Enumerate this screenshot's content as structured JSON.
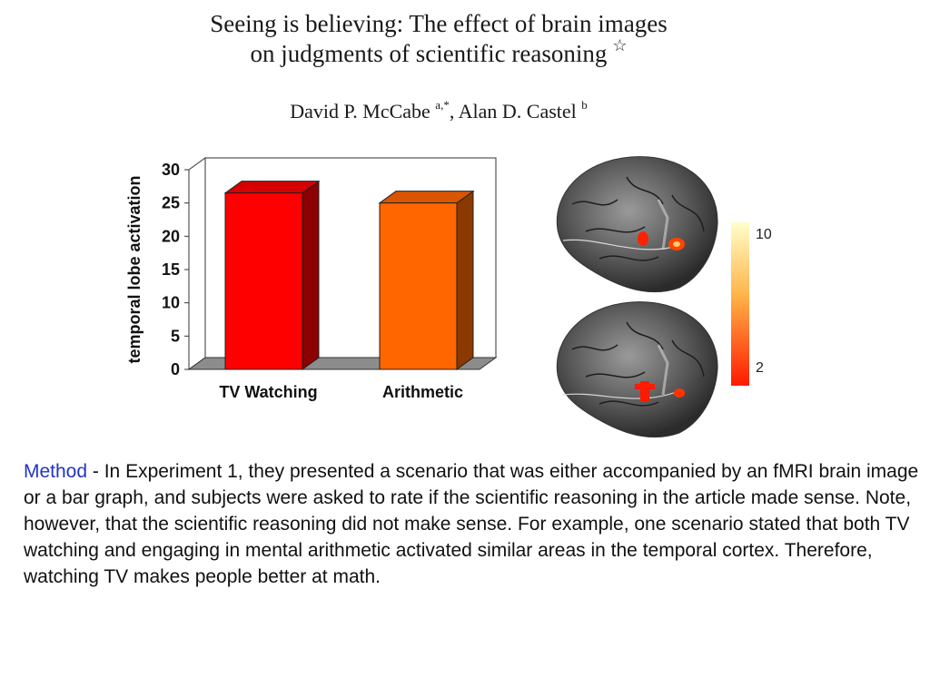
{
  "paper": {
    "title_line1": "Seeing is believing: The effect of brain images",
    "title_line2": "on judgments of scientific reasoning",
    "title_star": "☆",
    "author1": "David P. McCabe",
    "author1_sup": "a,*",
    "author_sep": ", ",
    "author2": "Alan D. Castel",
    "author2_sup": "b"
  },
  "chart_data": {
    "type": "bar",
    "categories": [
      "TV Watching",
      "Arithmetic"
    ],
    "values": [
      26.5,
      25
    ],
    "ylabel": "temporal lobe activation",
    "ylim": [
      0,
      30
    ],
    "yticks": [
      "0",
      "5",
      "10",
      "15",
      "20",
      "25",
      "30"
    ],
    "grid": false,
    "colors": {
      "tv_front": "#ff0000",
      "tv_side": "#8b0000",
      "tv_top": "#d60000",
      "ar_front": "#ff6600",
      "ar_side": "#8a3a00",
      "ar_top": "#d95500",
      "floor": "#8c8c8c"
    }
  },
  "colorbar": {
    "max_label": "10",
    "min_label": "2",
    "colors": {
      "top": "#ffffcc",
      "mid": "#ffb347",
      "bottom": "#ff1a00"
    }
  },
  "method": {
    "label": "Method",
    "separator": " -  ",
    "text": "In Experiment 1, they presented a scenario that was either accompanied by an fMRI brain image or a bar graph, and subjects were asked to rate if the scientific reasoning in the article made sense. Note, however, that the scientific reasoning did not make sense. For example, one scenario stated that both TV watching and engaging in mental arithmetic activated similar areas in the temporal cortex. Therefore, watching TV makes people better at math.",
    "label_color": "#2233cc"
  }
}
